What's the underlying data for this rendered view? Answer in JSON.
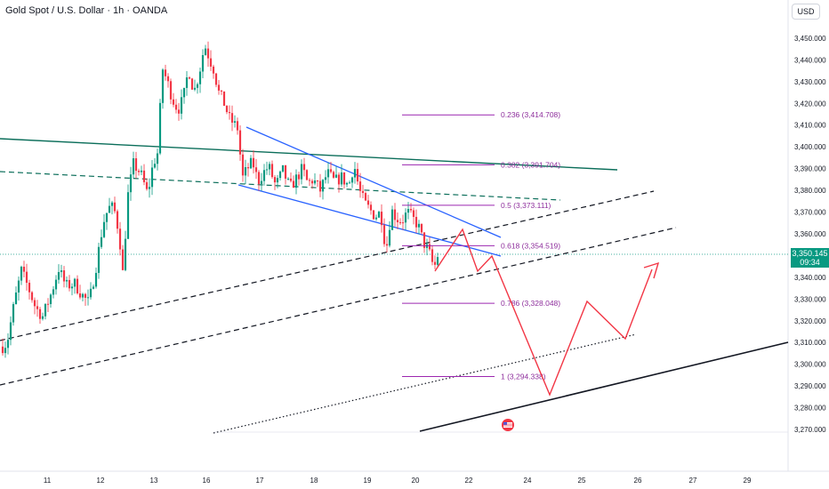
{
  "title": "Gold Spot / U.S. Dollar · 1h · OANDA",
  "currency": "USD",
  "last_price": "3,350.145",
  "countdown": "09:34",
  "colors": {
    "up": "#089981",
    "down": "#f23645",
    "fib": "#9c27b0",
    "channel": "#2962ff",
    "trend": "#0b6e5a",
    "projection": "#f23645"
  },
  "icons": [
    "flag-icon"
  ],
  "chart_data": {
    "type": "candlestick",
    "symbol": "XAUUSD",
    "timeframe": "1h",
    "y_axis_ticks": [
      3270,
      3280,
      3290,
      3300,
      3310,
      3320,
      3330,
      3340,
      3350,
      3360,
      3370,
      3380,
      3390,
      3400,
      3410,
      3420,
      3430,
      3440,
      3450
    ],
    "y_axis_tick_labels": [
      "3,270.000",
      "3,280.000",
      "3,290.000",
      "3,300.000",
      "3,310.000",
      "3,320.000",
      "3,330.000",
      "3,340.000",
      "3,350.000",
      "3,360.000",
      "3,370.000",
      "3,380.000",
      "3,390.000",
      "3,400.000",
      "3,410.000",
      "3,420.000",
      "3,430.000",
      "3,440.000",
      "3,450.000"
    ],
    "x_axis_ticks": [
      "11",
      "12",
      "13",
      "16",
      "17",
      "18",
      "19",
      "20",
      "22",
      "24",
      "25",
      "26",
      "27",
      "29"
    ],
    "fib_levels": [
      {
        "label": "0.236 (3,414.708)",
        "value": 3414.708
      },
      {
        "label": "0.382 (3,391.704)",
        "value": 3391.704
      },
      {
        "label": "0.5 (3,373.111)",
        "value": 3373.111
      },
      {
        "label": "0.618 (3,354.519)",
        "value": 3354.519
      },
      {
        "label": "0.786 (3,328.048)",
        "value": 3328.048
      },
      {
        "label": "1 (3,294.338)",
        "value": 3294.338
      }
    ],
    "current_price": 3350.145
  }
}
